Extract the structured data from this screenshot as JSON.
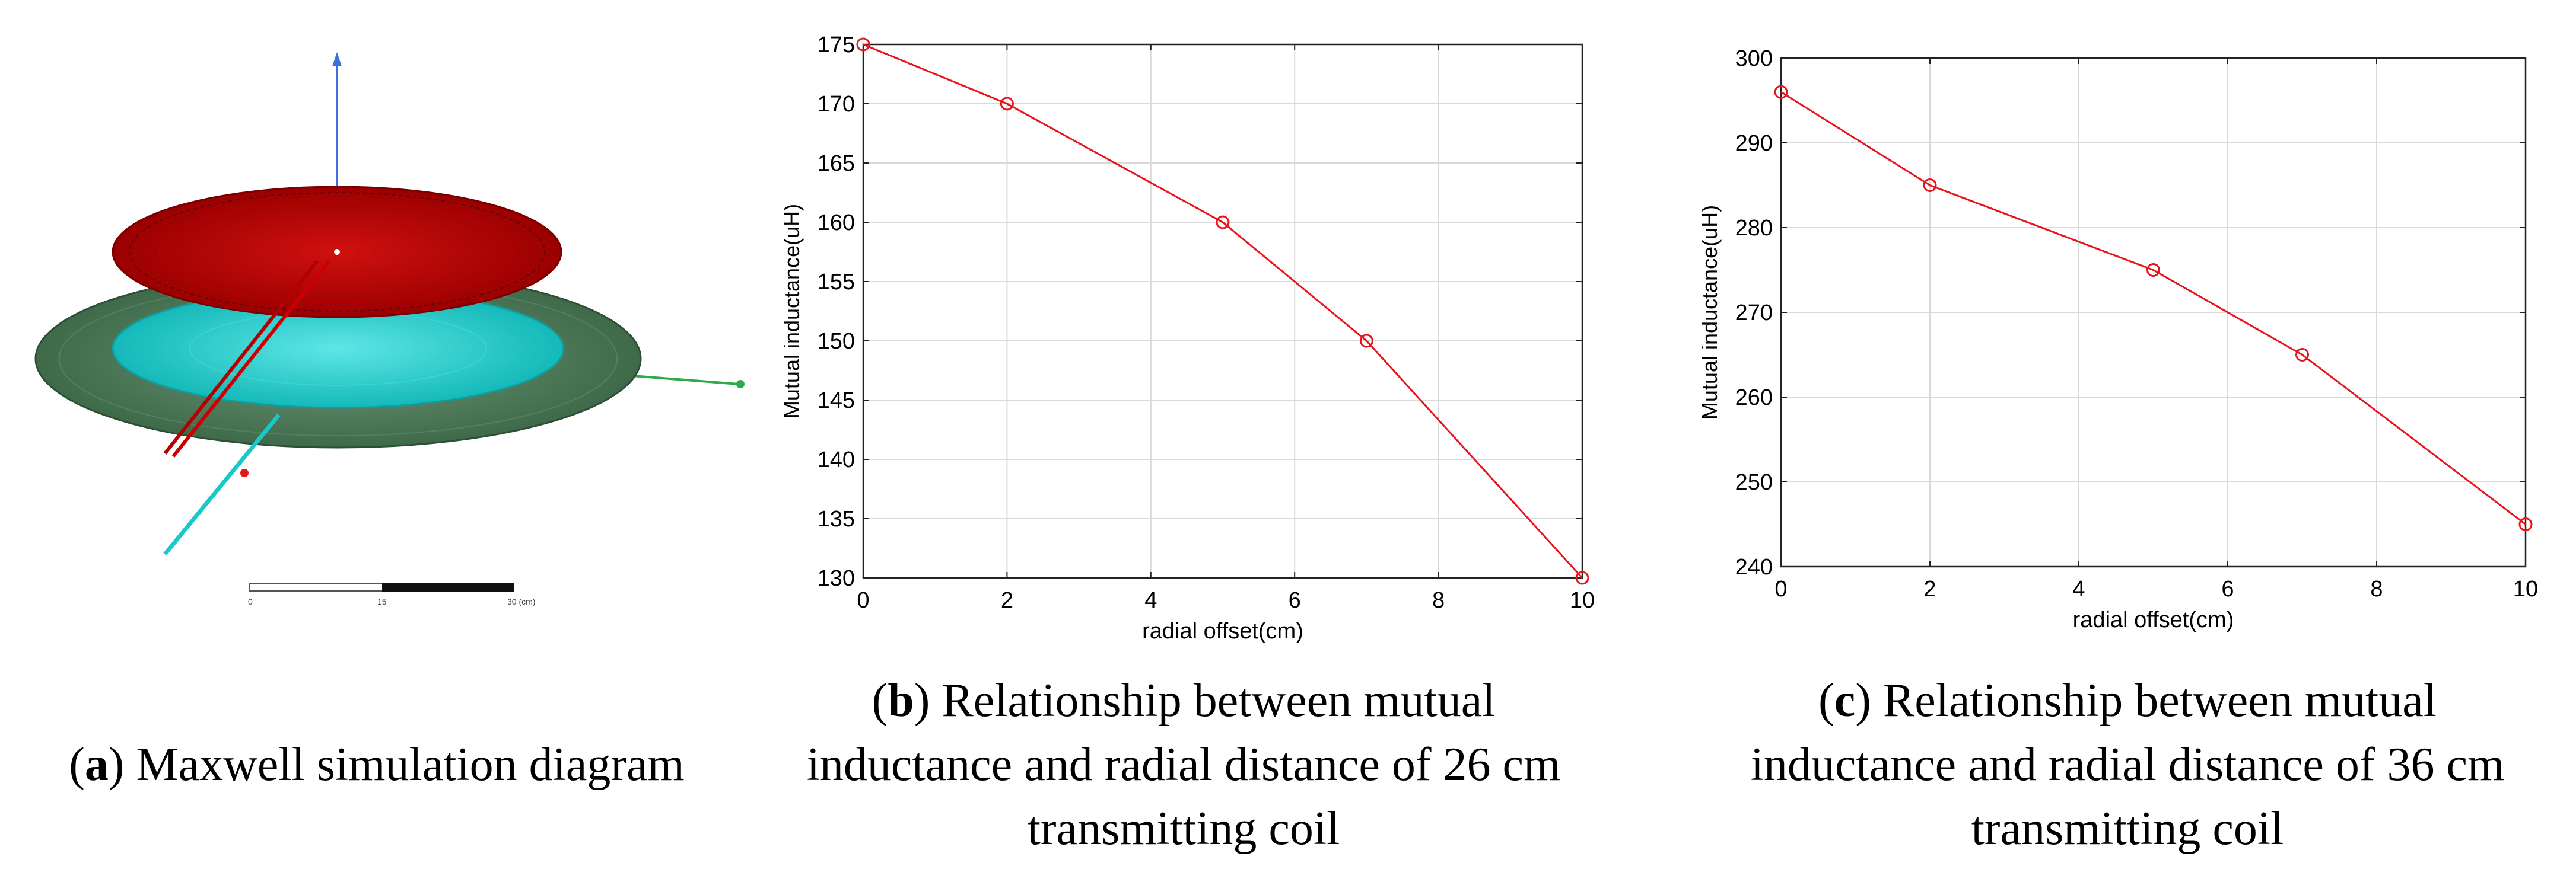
{
  "panel_a": {
    "caption_letter": "a",
    "caption_text": "Maxwell simulation diagram",
    "scale_ticks": [
      "0",
      "15",
      "30 (cm)"
    ],
    "colors": {
      "transmitter": "#cc0000",
      "receiver": "#19c8c8",
      "plate": "#4c7a56",
      "z_axis": "#3b6fe0",
      "x_axis": "#2eaa4a"
    }
  },
  "panel_b": {
    "caption_letter": "b",
    "caption_lines": [
      "Relationship between mutual",
      "inductance and radial distance of 26 cm",
      "transmitting coil"
    ]
  },
  "panel_c": {
    "caption_letter": "c",
    "caption_lines": [
      "Relationship between mutual",
      "inductance and radial distance of 36 cm",
      "transmitting coil"
    ]
  },
  "chart_data": [
    {
      "type": "line",
      "title": "",
      "xlabel": "radial offset(cm)",
      "ylabel": "Mutual inductance(uH)",
      "x": [
        0,
        2,
        5,
        7,
        10
      ],
      "series": [
        {
          "values": [
            175,
            170,
            160,
            150,
            130
          ],
          "color": "#e8141c",
          "marker": "circle"
        }
      ],
      "xlim": [
        0,
        10
      ],
      "ylim": [
        130,
        175
      ],
      "xticks": [
        0,
        2,
        4,
        6,
        8,
        10
      ],
      "yticks": [
        130,
        135,
        140,
        145,
        150,
        155,
        160,
        165,
        170,
        175
      ],
      "grid": true
    },
    {
      "type": "line",
      "title": "",
      "xlabel": "radial offset(cm)",
      "ylabel": "Mutual inductance(uH)",
      "x": [
        0,
        2,
        5,
        7,
        10
      ],
      "series": [
        {
          "values": [
            296,
            285,
            275,
            265,
            245
          ],
          "color": "#e8141c",
          "marker": "circle"
        }
      ],
      "xlim": [
        0,
        10
      ],
      "ylim": [
        240,
        300
      ],
      "xticks": [
        0,
        2,
        4,
        6,
        8,
        10
      ],
      "yticks": [
        240,
        250,
        260,
        270,
        280,
        290,
        300
      ],
      "grid": true
    }
  ]
}
